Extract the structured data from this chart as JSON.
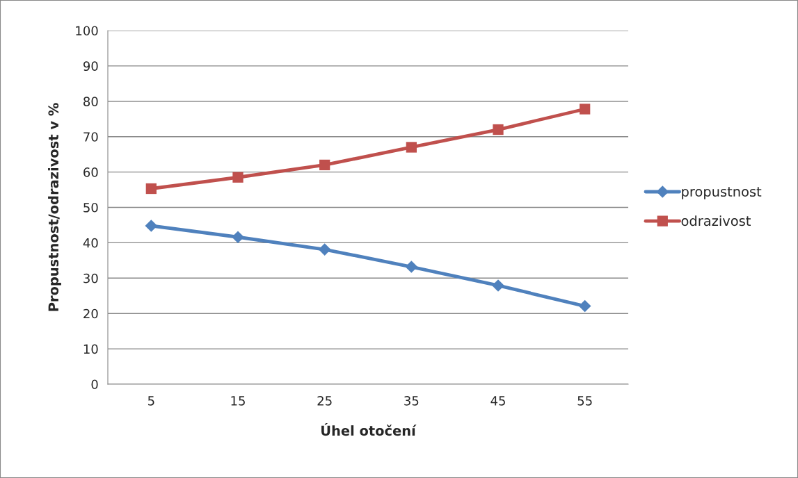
{
  "chart_data": {
    "type": "line",
    "xlabel": "Úhel otočení",
    "ylabel": "Propustnost/odrazivost v %",
    "categories": [
      "5",
      "15",
      "25",
      "35",
      "45",
      "55"
    ],
    "series": [
      {
        "name": "propustnost",
        "color": "#4f81bd",
        "marker": "diamond",
        "values": [
          44.8,
          41.6,
          38.1,
          33.2,
          27.9,
          22.1
        ]
      },
      {
        "name": "odrazivost",
        "color": "#c0504d",
        "marker": "square",
        "values": [
          55.3,
          58.5,
          62.0,
          67.0,
          72.0,
          77.8
        ]
      }
    ],
    "ylim": [
      0,
      100
    ],
    "yticks": [
      0,
      10,
      20,
      30,
      40,
      50,
      60,
      70,
      80,
      90,
      100
    ],
    "grid": "y",
    "legend": "right",
    "line_style": "solid"
  }
}
